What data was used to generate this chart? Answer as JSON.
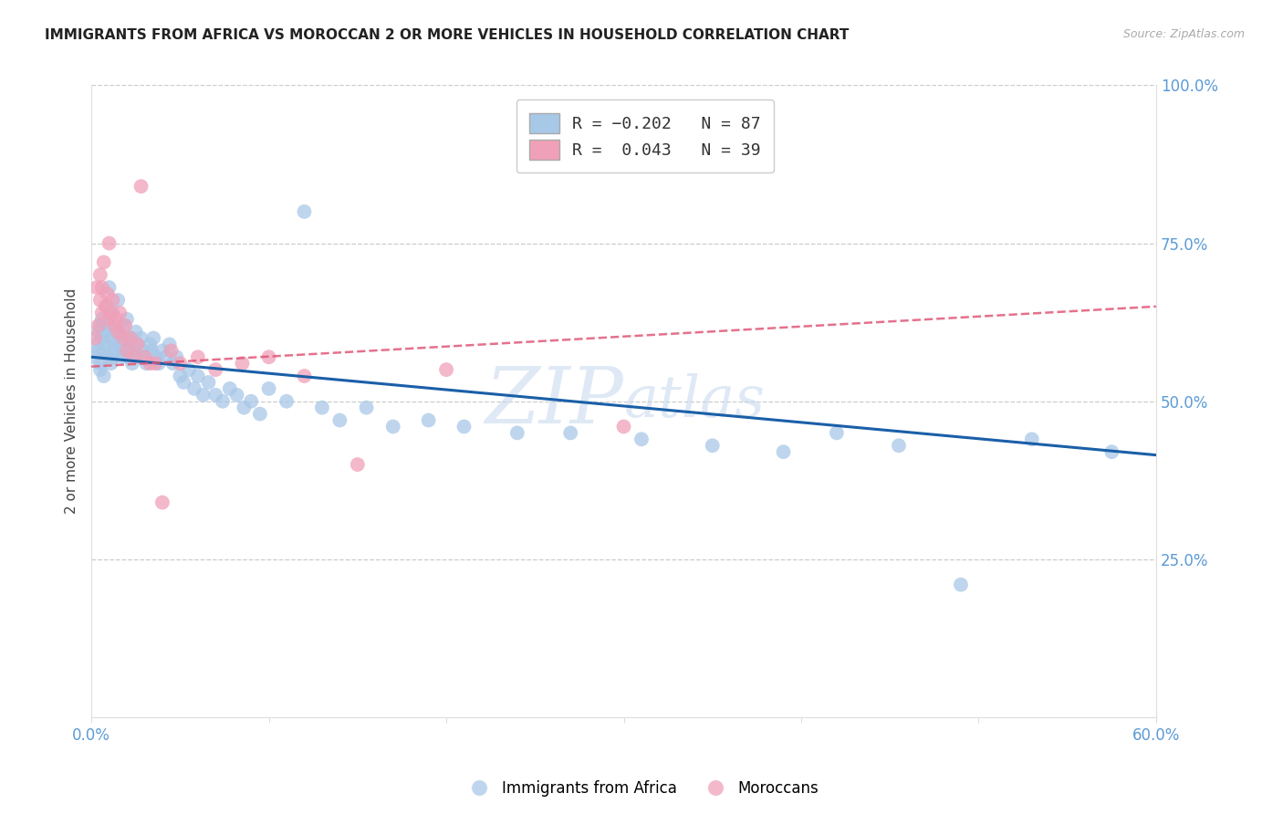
{
  "title": "IMMIGRANTS FROM AFRICA VS MOROCCAN 2 OR MORE VEHICLES IN HOUSEHOLD CORRELATION CHART",
  "source": "Source: ZipAtlas.com",
  "ylabel": "2 or more Vehicles in Household",
  "xlim": [
    0.0,
    0.6
  ],
  "ylim": [
    0.0,
    1.0
  ],
  "blue_color": "#a8c8e8",
  "pink_color": "#f0a0b8",
  "blue_line_color": "#1a5fa8",
  "pink_line_color": "#e05878",
  "watermark_zip": "ZIP",
  "watermark_atlas": "atlas",
  "blue_R": -0.202,
  "blue_N": 87,
  "pink_R": 0.043,
  "pink_N": 39,
  "blue_line_y0": 0.57,
  "blue_line_y1": 0.415,
  "pink_line_y0": 0.555,
  "pink_line_y1": 0.65,
  "blue_scatter_x": [
    0.002,
    0.003,
    0.004,
    0.004,
    0.005,
    0.005,
    0.005,
    0.006,
    0.006,
    0.007,
    0.007,
    0.008,
    0.008,
    0.009,
    0.009,
    0.01,
    0.01,
    0.011,
    0.011,
    0.012,
    0.012,
    0.013,
    0.013,
    0.014,
    0.015,
    0.015,
    0.016,
    0.017,
    0.018,
    0.018,
    0.019,
    0.02,
    0.02,
    0.021,
    0.022,
    0.023,
    0.024,
    0.025,
    0.026,
    0.027,
    0.028,
    0.029,
    0.03,
    0.031,
    0.033,
    0.034,
    0.035,
    0.036,
    0.038,
    0.04,
    0.042,
    0.044,
    0.046,
    0.048,
    0.05,
    0.052,
    0.055,
    0.058,
    0.06,
    0.063,
    0.066,
    0.07,
    0.074,
    0.078,
    0.082,
    0.086,
    0.09,
    0.095,
    0.1,
    0.11,
    0.12,
    0.13,
    0.14,
    0.155,
    0.17,
    0.19,
    0.21,
    0.24,
    0.27,
    0.31,
    0.35,
    0.39,
    0.42,
    0.455,
    0.49,
    0.53,
    0.575
  ],
  "blue_scatter_y": [
    0.57,
    0.59,
    0.58,
    0.61,
    0.62,
    0.56,
    0.55,
    0.63,
    0.6,
    0.58,
    0.54,
    0.61,
    0.59,
    0.65,
    0.57,
    0.68,
    0.62,
    0.6,
    0.56,
    0.64,
    0.57,
    0.61,
    0.59,
    0.58,
    0.66,
    0.61,
    0.59,
    0.57,
    0.62,
    0.58,
    0.6,
    0.63,
    0.58,
    0.57,
    0.6,
    0.56,
    0.58,
    0.61,
    0.59,
    0.57,
    0.6,
    0.58,
    0.57,
    0.56,
    0.59,
    0.58,
    0.6,
    0.57,
    0.56,
    0.58,
    0.57,
    0.59,
    0.56,
    0.57,
    0.54,
    0.53,
    0.55,
    0.52,
    0.54,
    0.51,
    0.53,
    0.51,
    0.5,
    0.52,
    0.51,
    0.49,
    0.5,
    0.48,
    0.52,
    0.5,
    0.8,
    0.49,
    0.47,
    0.49,
    0.46,
    0.47,
    0.46,
    0.45,
    0.45,
    0.44,
    0.43,
    0.42,
    0.45,
    0.43,
    0.21,
    0.44,
    0.42
  ],
  "pink_scatter_x": [
    0.002,
    0.003,
    0.004,
    0.005,
    0.005,
    0.006,
    0.006,
    0.007,
    0.008,
    0.009,
    0.01,
    0.01,
    0.011,
    0.012,
    0.013,
    0.014,
    0.015,
    0.016,
    0.018,
    0.019,
    0.02,
    0.022,
    0.024,
    0.026,
    0.028,
    0.03,
    0.033,
    0.036,
    0.04,
    0.045,
    0.05,
    0.06,
    0.07,
    0.085,
    0.1,
    0.12,
    0.15,
    0.2,
    0.3
  ],
  "pink_scatter_y": [
    0.6,
    0.68,
    0.62,
    0.7,
    0.66,
    0.68,
    0.64,
    0.72,
    0.65,
    0.67,
    0.63,
    0.75,
    0.64,
    0.66,
    0.62,
    0.63,
    0.61,
    0.64,
    0.6,
    0.62,
    0.58,
    0.6,
    0.57,
    0.59,
    0.84,
    0.57,
    0.56,
    0.56,
    0.34,
    0.58,
    0.56,
    0.57,
    0.55,
    0.56,
    0.57,
    0.54,
    0.4,
    0.55,
    0.46
  ]
}
